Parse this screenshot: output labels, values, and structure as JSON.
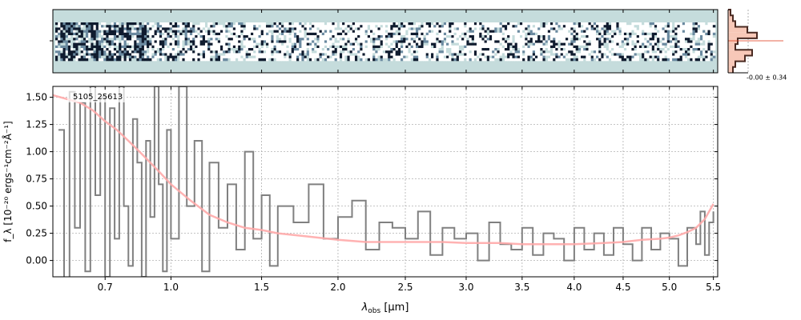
{
  "chart_data": [
    {
      "type": "heatmap",
      "panel": "2d-spectrum",
      "colors": {
        "background": "#c5dcdc",
        "dark": "#0f1b2e",
        "mid": "#6b8aa0",
        "light": "#ffffff"
      },
      "x_ticks_um": [
        0.7,
        1.0,
        1.5,
        2.0,
        2.5,
        3.0,
        3.5,
        4.0,
        4.5,
        5.0,
        5.5
      ]
    },
    {
      "type": "line",
      "panel": "1d-spectrum",
      "title": "5105_25613",
      "xlabel_main": "λ",
      "xlabel_sub": "obs",
      "xlabel_unit": "[μm]",
      "ylabel": "f_λ [10⁻²⁰ ergs⁻¹cm⁻²Å⁻¹]",
      "xlim": [
        0.5,
        5.55
      ],
      "ylim": [
        -0.15,
        1.6
      ],
      "grid": true,
      "x_ticks": [
        0.7,
        1.0,
        1.5,
        2.0,
        2.5,
        3.0,
        3.5,
        4.0,
        4.5,
        5.0,
        5.5
      ],
      "x_tick_labels": [
        "0.7",
        "1.0",
        "1.5",
        "2.0",
        "2.5",
        "3.0",
        "3.5",
        "4.0",
        "4.5",
        "5.0",
        "5.5"
      ],
      "y_ticks": [
        0.0,
        0.25,
        0.5,
        0.75,
        1.0,
        1.25,
        1.5
      ],
      "y_tick_labels": [
        "0.00",
        "0.25",
        "0.50",
        "0.75",
        "1.00",
        "1.25",
        "1.50"
      ],
      "colors": {
        "data": "#808080",
        "model": "#ffaaaa"
      },
      "series": [
        {
          "role": "model",
          "x": [
            0.5,
            0.6,
            0.65,
            0.7,
            0.75,
            0.8,
            0.85,
            0.9,
            0.95,
            1.0,
            1.1,
            1.2,
            1.3,
            1.4,
            1.5,
            1.6,
            1.8,
            2.0,
            2.2,
            2.5,
            2.8,
            3.0,
            3.3,
            3.5,
            3.8,
            4.0,
            4.3,
            4.5,
            4.7,
            4.9,
            5.0,
            5.1,
            5.2,
            5.3,
            5.4,
            5.5
          ],
          "values": [
            1.52,
            1.45,
            1.38,
            1.28,
            1.2,
            1.1,
            1.0,
            0.9,
            0.8,
            0.7,
            0.55,
            0.42,
            0.35,
            0.3,
            0.28,
            0.25,
            0.22,
            0.19,
            0.17,
            0.17,
            0.17,
            0.16,
            0.16,
            0.15,
            0.15,
            0.15,
            0.16,
            0.17,
            0.19,
            0.2,
            0.21,
            0.23,
            0.26,
            0.3,
            0.38,
            0.52
          ]
        },
        {
          "role": "observed",
          "x": [
            0.52,
            0.54,
            0.56,
            0.58,
            0.6,
            0.62,
            0.64,
            0.66,
            0.68,
            0.7,
            0.72,
            0.74,
            0.76,
            0.78,
            0.8,
            0.82,
            0.84,
            0.86,
            0.88,
            0.9,
            0.92,
            0.94,
            0.96,
            0.98,
            1.0,
            1.04,
            1.08,
            1.12,
            1.16,
            1.2,
            1.25,
            1.3,
            1.35,
            1.4,
            1.45,
            1.5,
            1.55,
            1.6,
            1.7,
            1.8,
            1.9,
            2.0,
            2.1,
            2.2,
            2.3,
            2.4,
            2.5,
            2.6,
            2.7,
            2.8,
            2.9,
            3.0,
            3.1,
            3.2,
            3.3,
            3.4,
            3.5,
            3.6,
            3.7,
            3.8,
            3.9,
            4.0,
            4.1,
            4.2,
            4.3,
            4.4,
            4.5,
            4.6,
            4.7,
            4.8,
            4.9,
            5.0,
            5.1,
            5.2,
            5.3,
            5.35,
            5.4,
            5.45,
            5.5
          ],
          "values": [
            1.2,
            -0.2,
            1.55,
            0.3,
            1.45,
            -0.1,
            1.6,
            0.6,
            1.5,
            -0.15,
            1.4,
            0.2,
            1.6,
            0.5,
            -0.05,
            1.3,
            0.9,
            -0.15,
            1.1,
            0.4,
            1.6,
            0.7,
            -0.1,
            1.2,
            0.2,
            1.6,
            0.5,
            1.1,
            -0.1,
            0.9,
            0.3,
            0.7,
            0.1,
            1.0,
            0.2,
            0.6,
            -0.05,
            0.5,
            0.35,
            0.7,
            0.2,
            0.4,
            0.55,
            0.1,
            0.35,
            0.3,
            0.2,
            0.45,
            0.05,
            0.3,
            0.2,
            0.25,
            0.0,
            0.35,
            0.15,
            0.1,
            0.3,
            0.05,
            0.25,
            0.2,
            0.0,
            0.3,
            0.1,
            0.25,
            0.05,
            0.3,
            0.15,
            0.0,
            0.3,
            0.1,
            0.25,
            0.2,
            -0.05,
            0.3,
            0.15,
            0.45,
            0.05,
            0.35,
            0.45
          ]
        }
      ]
    },
    {
      "type": "bar",
      "panel": "profile",
      "annotation": "-0.00 ± 0.34",
      "colors": {
        "fill": "#f7c8b8",
        "outline": "#4a2a22",
        "model": "#e04020"
      },
      "values": [
        0.05,
        0.1,
        0.15,
        0.4,
        0.6,
        0.2,
        0.15,
        0.5,
        0.35,
        0.15,
        0.1
      ]
    }
  ]
}
